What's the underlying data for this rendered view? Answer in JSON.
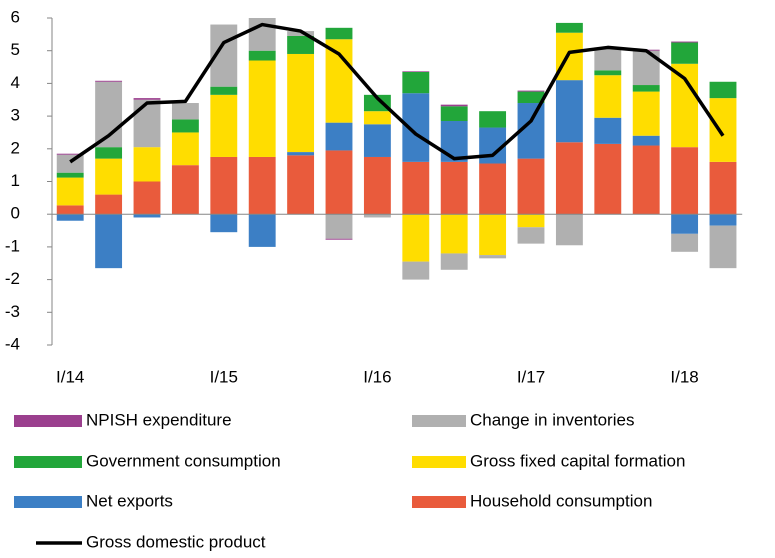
{
  "chart_data": {
    "type": "bar",
    "stacked": true,
    "categories": [
      "I/14",
      null,
      null,
      null,
      "I/15",
      null,
      null,
      null,
      "I/16",
      null,
      null,
      null,
      "I/17",
      null,
      null,
      null,
      "I/18",
      null
    ],
    "series": [
      {
        "name": "NPISH expenditure",
        "color": "#9b3f8e",
        "values": [
          0.03,
          0.03,
          0.05,
          0,
          0,
          0,
          0,
          -0.03,
          0,
          0.02,
          0.05,
          0,
          0.03,
          0,
          0,
          0.03,
          0.03,
          0
        ]
      },
      {
        "name": "Change in inventories",
        "color": "#b0b0b0",
        "values": [
          0.55,
          2.0,
          1.45,
          0.5,
          1.9,
          1.0,
          0.15,
          -0.75,
          -0.1,
          -0.55,
          -0.5,
          -0.1,
          -0.5,
          -0.95,
          0.7,
          1.05,
          -0.55,
          -1.3
        ]
      },
      {
        "name": "Government consumption",
        "color": "#22a63a",
        "values": [
          0.15,
          0.35,
          0,
          0.4,
          0.25,
          0.3,
          0.55,
          0.35,
          0.5,
          0.65,
          0.45,
          0.5,
          0.35,
          0.3,
          0.15,
          0.2,
          0.65,
          0.5
        ]
      },
      {
        "name": "Gross fixed capital formation",
        "color": "#ffdd00",
        "values": [
          0.85,
          1.1,
          1.05,
          1.0,
          1.9,
          2.95,
          3.0,
          2.55,
          0.4,
          -1.45,
          -1.2,
          -1.25,
          -0.4,
          1.45,
          1.3,
          1.35,
          2.55,
          1.95
        ]
      },
      {
        "name": "Net exports",
        "color": "#3c7fc5",
        "values": [
          -0.2,
          -1.65,
          -0.1,
          0,
          -0.55,
          -1.0,
          0.1,
          0.85,
          1.0,
          2.1,
          1.25,
          1.1,
          1.7,
          1.9,
          0.8,
          0.3,
          -0.6,
          -0.35
        ]
      },
      {
        "name": "Household consumption",
        "color": "#e95b3c",
        "values": [
          0.27,
          0.6,
          1.0,
          1.5,
          1.75,
          1.75,
          1.8,
          1.95,
          1.75,
          1.6,
          1.6,
          1.55,
          1.7,
          2.2,
          2.15,
          2.1,
          2.05,
          1.6
        ]
      },
      {
        "name": "Gross domestic product",
        "type": "line",
        "color": "#000000",
        "values": [
          1.6,
          2.4,
          3.4,
          3.45,
          5.25,
          5.8,
          5.6,
          4.9,
          3.55,
          2.45,
          1.7,
          1.8,
          2.85,
          4.95,
          5.1,
          5.0,
          4.15,
          2.4
        ]
      }
    ],
    "ylim": [
      -4,
      6
    ],
    "yticks": [
      -4,
      -3,
      -2,
      -1,
      0,
      1,
      2,
      3,
      4,
      5,
      6
    ],
    "grid": false
  }
}
